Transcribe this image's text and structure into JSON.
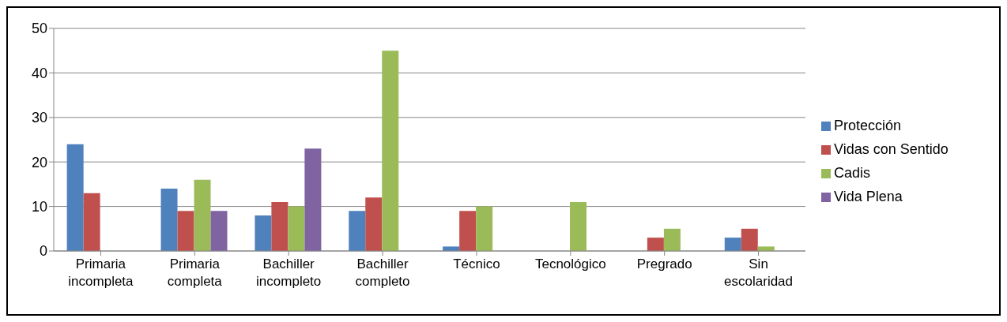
{
  "chart_data": {
    "type": "bar",
    "categories": [
      "Primaria incompleta",
      "Primaria completa",
      "Bachiller incompleto",
      "Bachiller completo",
      "Técnico",
      "Tecnológico",
      "Pregrado",
      "Sin escolaridad"
    ],
    "series": [
      {
        "name": "Protección",
        "color": "#4f81bd",
        "values": [
          24,
          14,
          8,
          9,
          1,
          0,
          0,
          3
        ]
      },
      {
        "name": "Vidas con Sentido",
        "color": "#c0504d",
        "values": [
          13,
          9,
          11,
          12,
          9,
          0,
          3,
          5
        ]
      },
      {
        "name": "Cadis",
        "color": "#9bbb59",
        "values": [
          0,
          16,
          10,
          45,
          10,
          11,
          5,
          1
        ]
      },
      {
        "name": "Vida Plena",
        "color": "#8064a2",
        "values": [
          0,
          9,
          23,
          0,
          0,
          0,
          0,
          0
        ]
      }
    ],
    "ylim": [
      0,
      50
    ],
    "yticks": [
      0,
      10,
      20,
      30,
      40,
      50
    ],
    "grid": "y",
    "legend": "right"
  }
}
